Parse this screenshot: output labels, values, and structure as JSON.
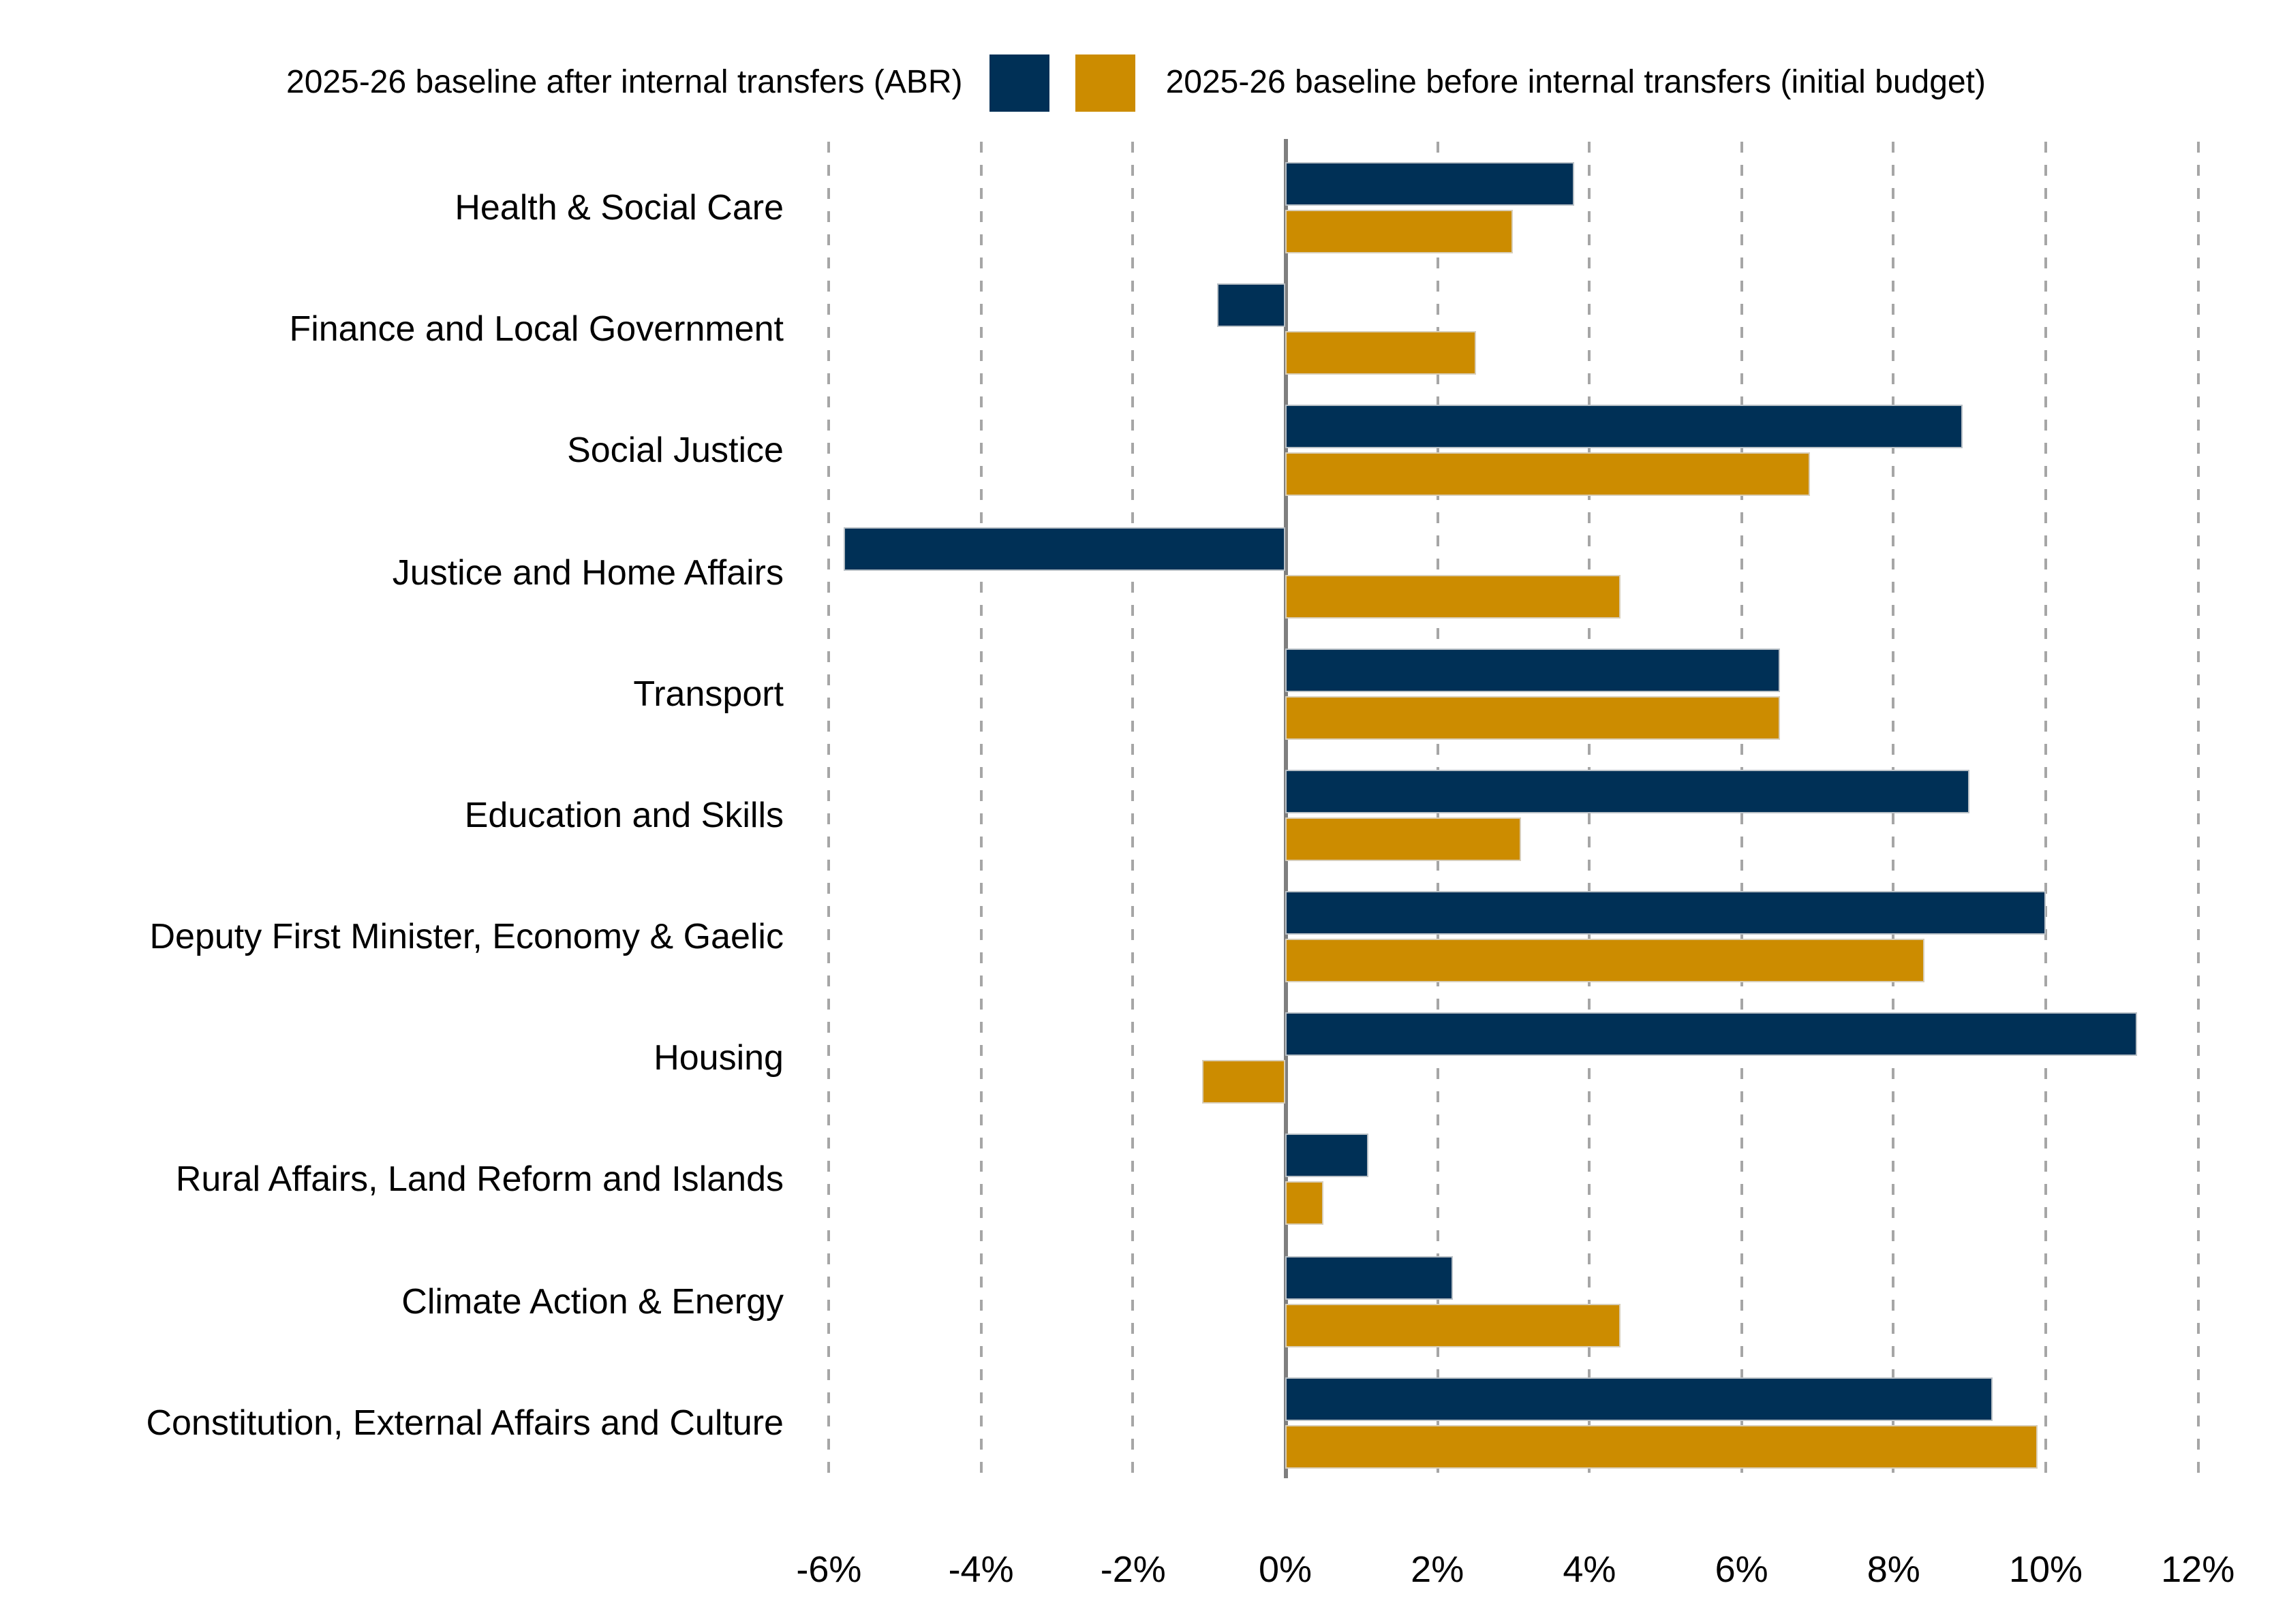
{
  "page": {
    "background": "#ffffff",
    "text_color": "#000000"
  },
  "legend": {
    "position": "top",
    "entries": [
      {
        "label": "2025-26 baseline after internal transfers (ABR)",
        "color": "#003056",
        "swatch_side": "right-of-label"
      },
      {
        "label": "2025-26 baseline before internal transfers (initial budget)",
        "color": "#CC8C00",
        "swatch_side": "left-of-label"
      }
    ]
  },
  "chart_data": {
    "type": "bar",
    "orientation": "horizontal",
    "title": "",
    "xlabel": "",
    "ylabel": "",
    "categories": [
      "Health & Social Care",
      "Finance and Local Government",
      "Social Justice",
      "Justice and Home Affairs",
      "Transport",
      "Education and Skills",
      "Deputy First Minister, Economy & Gaelic",
      "Housing",
      "Rural Affairs, Land Reform and Islands",
      "Climate Action & Energy",
      "Constitution, External Affairs and Culture"
    ],
    "series": [
      {
        "name": "2025-26 baseline after internal transfers (ABR)",
        "color": "#003056",
        "values": [
          3.8,
          -0.9,
          8.9,
          -5.8,
          6.5,
          9.0,
          10.0,
          11.2,
          1.1,
          2.2,
          9.3
        ]
      },
      {
        "name": "2025-26 baseline before internal transfers (initial budget)",
        "color": "#CC8C00",
        "values": [
          3.0,
          2.5,
          6.9,
          4.4,
          6.5,
          3.1,
          8.4,
          -1.1,
          0.5,
          4.4,
          9.9
        ]
      }
    ],
    "x_axis": {
      "min": -6,
      "max": 12,
      "tick_step": 2,
      "tick_values": [
        -6,
        -4,
        -2,
        0,
        2,
        4,
        6,
        8,
        10,
        12
      ],
      "tick_labels": [
        "-6%",
        "-4%",
        "-2%",
        "0%",
        "2%",
        "4%",
        "6%",
        "8%",
        "10%",
        "12%"
      ],
      "unit": "percent"
    },
    "grid": {
      "direction": "vertical",
      "style": "dashed",
      "color": "#a6a6a6"
    },
    "axis_line_color": "#7f7f7f",
    "legend_position": "top"
  }
}
